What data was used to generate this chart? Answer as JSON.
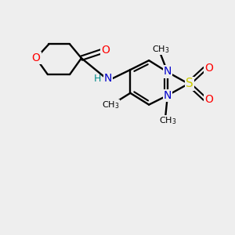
{
  "background_color": "#eeeeee",
  "bond_color": "#000000",
  "atom_colors": {
    "O": "#ff0000",
    "N": "#0000cc",
    "S": "#cccc00",
    "C": "#000000",
    "H": "#008b8b"
  },
  "figsize": [
    3.0,
    3.0
  ],
  "dpi": 100
}
